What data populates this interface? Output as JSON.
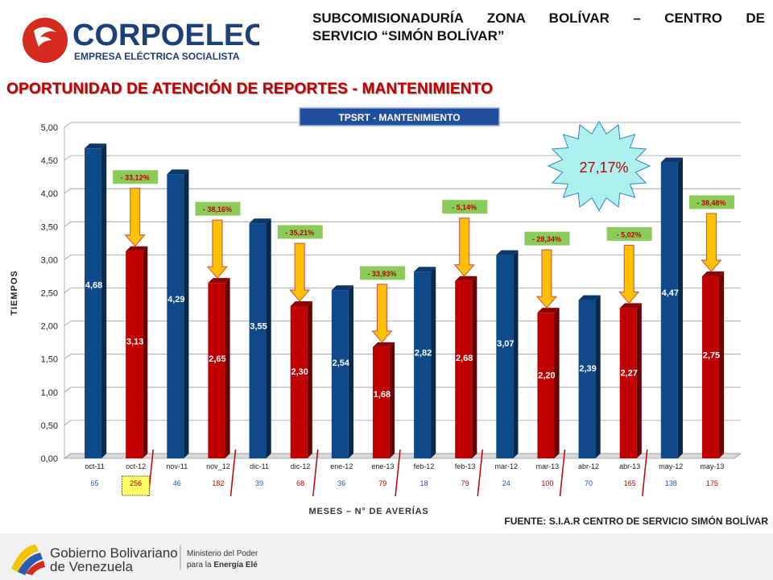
{
  "header": {
    "brand": "CORPOELEC",
    "brand_sub": "EMPRESA ELÉCTRICA SOCIALISTA",
    "title_line1": "SUBCOMISIONADURÍA ZONA BOLÍVAR – CENTRO DE",
    "title_line2": "SERVICIO “SIMÓN BOLÍVAR”"
  },
  "main_title": "OPORTUNIDAD DE ATENCIÓN DE REPORTES - MANTENIMIENTO",
  "chart_data": {
    "type": "bar",
    "title": "TPSRT - MANTENIMIENTO",
    "ylabel": "TIEMPOS",
    "xlabel": "MESES – N° DE AVERÍAS",
    "ylim": [
      0,
      5
    ],
    "yticks": [
      "0,00",
      "0,50",
      "1,00",
      "1,50",
      "2,00",
      "2,50",
      "3,00",
      "3,50",
      "4,00",
      "4,50",
      "5,00"
    ],
    "categories": [
      "oct-11",
      "oct-12",
      "nov-11",
      "nov_12",
      "dic-11",
      "dic-12",
      "ene-12",
      "ene-13",
      "feb-12",
      "feb-13",
      "mar-12",
      "mar-13",
      "abr-12",
      "abr-13",
      "may-12",
      "may-13"
    ],
    "values": [
      4.68,
      3.13,
      4.29,
      2.65,
      3.55,
      2.3,
      2.54,
      1.68,
      2.82,
      2.68,
      3.07,
      2.2,
      2.39,
      2.27,
      4.47,
      2.75
    ],
    "value_labels": [
      "4,68",
      "3,13",
      "4,29",
      "2,65",
      "3,55",
      "2,30",
      "2,54",
      "1,68",
      "2,82",
      "2,68",
      "3,07",
      "2,20",
      "2,39",
      "2,27",
      "4,47",
      "2,75"
    ],
    "bar_colors": [
      "#0e4a8a",
      "#c00000"
    ],
    "counts": [
      "65",
      "256",
      "46",
      "182",
      "39",
      "68",
      "36",
      "79",
      "18",
      "79",
      "24",
      "100",
      "70",
      "165",
      "138",
      "175"
    ],
    "count_colors": [
      "#3050b0",
      "#c00000"
    ],
    "changes": [
      {
        "index": 1,
        "label": "- 33,12%",
        "value": -33.12
      },
      {
        "index": 3,
        "label": "- 38,16%",
        "value": -38.16
      },
      {
        "index": 5,
        "label": "- 35,21%",
        "value": -35.21
      },
      {
        "index": 7,
        "label": "- 33,93%",
        "value": -33.93
      },
      {
        "index": 9,
        "label": "- 5,14%",
        "value": -5.14
      },
      {
        "index": 11,
        "label": "- 28,34%",
        "value": -28.34
      },
      {
        "index": 13,
        "label": "- 5,02%",
        "value": -5.02
      },
      {
        "index": 15,
        "label": "- 38,48%",
        "value": -38.48
      }
    ],
    "overall_change": "27,17%",
    "highlight_count_index": 1,
    "grid": true,
    "colors": {
      "badge_bg": "#8bcb5a",
      "badge_text": "#c00000",
      "arrow": "#ffc000",
      "title_box": "#1f4e9c",
      "burst_bg": "#aef0ee",
      "accent_line": "#c00000"
    }
  },
  "source": "FUENTE: S.I.A.R CENTRO DE SERVICIO SIMÓN BOLÍVAR",
  "footer": {
    "gov_line1": "Gobierno Bolivariano",
    "gov_line2": "de Venezuela",
    "ministry_line1": "Ministerio del Poder Popular",
    "ministry_line2_prefix": "para la",
    "ministry_line2_strong": "Energía Eléctrica"
  }
}
